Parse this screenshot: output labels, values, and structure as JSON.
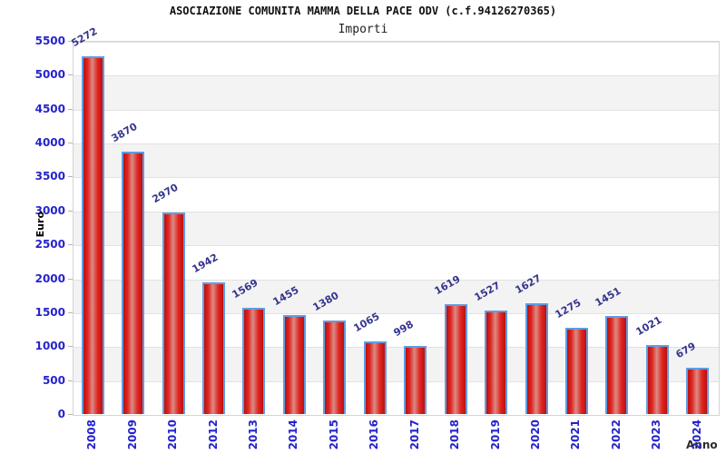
{
  "chart_data": {
    "type": "bar",
    "title": "ASOCIAZIONE COMUNITA MAMMA DELLA PACE ODV (c.f.94126270365)",
    "subtitle": "Importi",
    "xlabel": "Anno",
    "ylabel": "Euro",
    "categories": [
      "2008",
      "2009",
      "2010",
      "2012",
      "2013",
      "2014",
      "2015",
      "2016",
      "2017",
      "2018",
      "2019",
      "2020",
      "2021",
      "2022",
      "2023",
      "2024"
    ],
    "values": [
      5272,
      3870,
      2970,
      1942,
      1569,
      1455,
      1380,
      1065,
      998,
      1619,
      1527,
      1627,
      1275,
      1451,
      1021,
      679
    ],
    "ylim": [
      0,
      5500
    ],
    "ytick_step": 500,
    "y_ticks": [
      0,
      500,
      1000,
      1500,
      2000,
      2500,
      3000,
      3500,
      4000,
      4500,
      5000,
      5500
    ],
    "legend": "none",
    "grid": "horizontal-banded",
    "colors": {
      "bar_fill": "#e02620",
      "bar_edge_dark": "#bd0f0f",
      "bar_highlight": "#da8b86",
      "bar_outline": "#5f9ce2",
      "tick_label": "#2424cc",
      "value_label": "#35358f",
      "band_gray": "#f3f3f3",
      "gridline": "#e2e2e2",
      "title_color": "#111111"
    }
  }
}
